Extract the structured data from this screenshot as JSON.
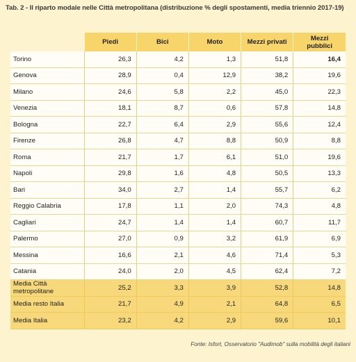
{
  "title": "Tab. 2 - Il riparto modale nelle Città metropolitana  (distribuzione % degli spostamenti, media triennio 2017-19)",
  "columns": [
    "Piedi",
    "Bici",
    "Moto",
    "Mezzi privati",
    "Mezzi pubblici"
  ],
  "rows": [
    {
      "city": "Torino",
      "values": [
        "26,3",
        "4,2",
        "1,3",
        "51,8",
        "16,4"
      ]
    },
    {
      "city": "Genova",
      "values": [
        "28,9",
        "0,4",
        "12,9",
        "38,2",
        "19,6"
      ]
    },
    {
      "city": "Milano",
      "values": [
        "24,6",
        "5,8",
        "2,2",
        "45,0",
        "22,3"
      ]
    },
    {
      "city": "Venezia",
      "values": [
        "18,1",
        "8,7",
        "0,6",
        "57,8",
        "14,8"
      ]
    },
    {
      "city": "Bologna",
      "values": [
        "22,7",
        "6,4",
        "2,9",
        "55,6",
        "12,4"
      ]
    },
    {
      "city": "Firenze",
      "values": [
        "26,8",
        "4,7",
        "8,8",
        "50,9",
        "8,8"
      ]
    },
    {
      "city": "Roma",
      "values": [
        "21,7",
        "1,7",
        "6,1",
        "51,0",
        "19,6"
      ]
    },
    {
      "city": "Napoli",
      "values": [
        "29,8",
        "1,6",
        "4,8",
        "50,5",
        "13,3"
      ]
    },
    {
      "city": "Bari",
      "values": [
        "34,0",
        "2,7",
        "1,4",
        "55,7",
        "6,2"
      ]
    },
    {
      "city": "Reggio Calabria",
      "values": [
        "17,8",
        "1,1",
        "2,0",
        "74,3",
        "4,8"
      ]
    },
    {
      "city": "Cagliari",
      "values": [
        "24,7",
        "1,4",
        "1,4",
        "60,7",
        "11,7"
      ]
    },
    {
      "city": "Palermo",
      "values": [
        "27,0",
        "0,9",
        "3,2",
        "61,9",
        "6,9"
      ]
    },
    {
      "city": "Messina",
      "values": [
        "16,6",
        "2,1",
        "4,6",
        "71,4",
        "5,3"
      ]
    },
    {
      "city": "Catania",
      "values": [
        "24,0",
        "2,0",
        "4,5",
        "62,4",
        "7,2"
      ]
    }
  ],
  "summary_rows": [
    {
      "city": "Media Città metropolitane",
      "values": [
        "25,2",
        "3,3",
        "3,9",
        "52,8",
        "14,8"
      ]
    },
    {
      "city": "Media resto Italia",
      "values": [
        "21,7",
        "4,9",
        "2,1",
        "64,8",
        "6,5"
      ]
    },
    {
      "city": "Media Italia",
      "values": [
        "23,2",
        "4,2",
        "2,9",
        "59,6",
        "10,1"
      ]
    }
  ],
  "source": "Fonte: Isfort, Osservatorio \"Audimob\" sulla mobilità degli italiani"
}
